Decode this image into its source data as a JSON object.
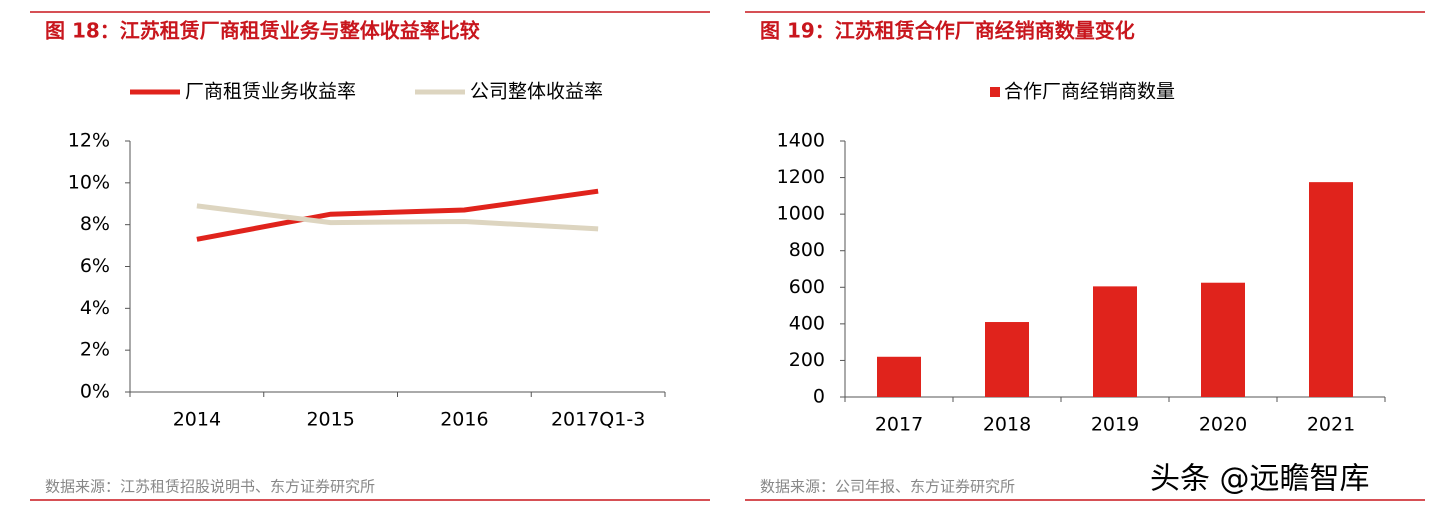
{
  "chart_data": [
    {
      "type": "line",
      "title": "图 18：江苏租赁厂商租赁业务与整体收益率比较",
      "categories": [
        "2014",
        "2015",
        "2016",
        "2017Q1-3"
      ],
      "series": [
        {
          "name": "厂商租赁业务收益率",
          "color": "#e0231c",
          "values": [
            7.3,
            8.5,
            8.7,
            9.6
          ]
        },
        {
          "name": "公司整体收益率",
          "color": "#ddd5c0",
          "values": [
            8.9,
            8.1,
            8.15,
            7.8
          ]
        }
      ],
      "ylim": [
        0,
        12
      ],
      "yticks": [
        {
          "value": 0,
          "label": "0%"
        },
        {
          "value": 2,
          "label": "2%"
        },
        {
          "value": 4,
          "label": "4%"
        },
        {
          "value": 6,
          "label": "6%"
        },
        {
          "value": 8,
          "label": "8%"
        },
        {
          "value": 10,
          "label": "10%"
        },
        {
          "value": 12,
          "label": "12%"
        }
      ],
      "source": "数据来源：江苏租赁招股说明书、东方证券研究所"
    },
    {
      "type": "bar",
      "title": "图 19：江苏租赁合作厂商经销商数量变化",
      "categories": [
        "2017",
        "2018",
        "2019",
        "2020",
        "2021"
      ],
      "series": [
        {
          "name": "合作厂商经销商数量",
          "color": "#e0231c",
          "values": [
            220,
            410,
            605,
            625,
            1175
          ]
        }
      ],
      "ylim": [
        0,
        1400
      ],
      "yticks": [
        0,
        200,
        400,
        600,
        800,
        1000,
        1200,
        1400
      ],
      "source": "数据来源：公司年报、东方证券研究所"
    }
  ],
  "watermark": "头条 @远瞻智库"
}
